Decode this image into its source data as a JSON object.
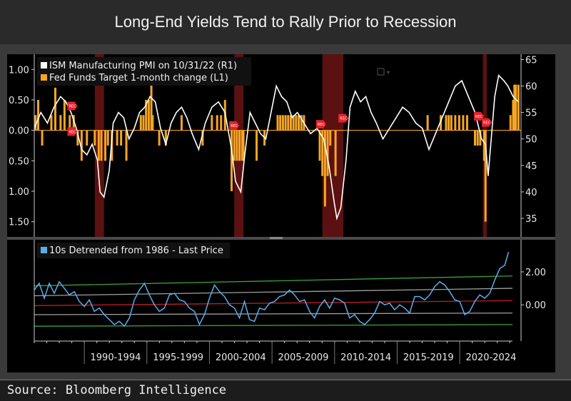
{
  "title": "Long-End Yields Tend to Rally Prior to Recession",
  "source": "Source: Bloomberg Intelligence",
  "colors": {
    "pmi": "#ffffff",
    "fed": "#f5a623",
    "tens": "#5aaeea",
    "recession": "#6b1414",
    "rec_marker": "#e8202a",
    "green_band": "#3ca03c",
    "grey_band": "#a0a0a0",
    "mean": "#c02020"
  },
  "chart_data": [
    {
      "type": "line",
      "title": "",
      "legend": [
        "ISM Manufacturing PMI on 10/31/22 (R1)",
        "Fed Funds Target 1-month change (L1)"
      ],
      "legend_position": "top-left",
      "left_axis": {
        "ticks": [
          "1.00",
          "0.50",
          "0.00",
          "0.50",
          "1.00",
          "1.50"
        ],
        "values": [
          1.0,
          0.5,
          0,
          -0.5,
          -1.0,
          -1.5
        ],
        "ylim": [
          -1.75,
          1.25
        ]
      },
      "right_axis": {
        "ticks": [
          "65",
          "60",
          "55",
          "50",
          "45",
          "40",
          "35"
        ],
        "values": [
          65,
          60,
          55,
          50,
          45,
          40,
          35
        ],
        "ylim": [
          31.5,
          66
        ]
      },
      "xlim": [
        1986.0,
        2023.0
      ],
      "recessions": [
        [
          1990.6,
          1991.3
        ],
        [
          2001.2,
          2001.9
        ],
        [
          2007.9,
          2009.5
        ],
        [
          2020.1,
          2020.4
        ]
      ],
      "rec_markers": [
        [
          1988.9,
          0.4,
          "REC"
        ],
        [
          1988.9,
          -0.02,
          "REC"
        ],
        [
          2001.2,
          0.08,
          "REC"
        ],
        [
          2007.8,
          0.1,
          "REC"
        ],
        [
          2009.5,
          0.2,
          "REC"
        ],
        [
          2019.8,
          0.23,
          "REC"
        ],
        [
          2020.4,
          0.13,
          "REC"
        ],
        [
          2008.3,
          -0.31,
          ""
        ],
        [
          2008.7,
          0.33,
          ""
        ]
      ],
      "series": [
        {
          "name": "ISM Manufacturing PMI",
          "axis": "right",
          "x": [
            1986.0,
            1986.5,
            1987.0,
            1987.5,
            1988.0,
            1988.4,
            1988.8,
            1989.2,
            1989.6,
            1990.0,
            1990.4,
            1990.8,
            1991.0,
            1991.3,
            1991.7,
            1992.0,
            1992.4,
            1992.8,
            1993.2,
            1993.6,
            1994.0,
            1994.4,
            1994.8,
            1995.2,
            1995.6,
            1996.0,
            1996.4,
            1996.8,
            1997.2,
            1997.6,
            1998.0,
            1998.5,
            1999.0,
            1999.5,
            2000.0,
            2000.5,
            2001.0,
            2001.3,
            2001.7,
            2002.0,
            2002.4,
            2002.8,
            2003.2,
            2003.6,
            2004.0,
            2004.4,
            2004.8,
            2005.2,
            2005.6,
            2006.0,
            2006.5,
            2007.0,
            2007.5,
            2008.0,
            2008.4,
            2008.8,
            2009.0,
            2009.3,
            2009.7,
            2010.0,
            2010.4,
            2010.8,
            2011.2,
            2011.6,
            2012.0,
            2012.5,
            2013.0,
            2013.5,
            2014.0,
            2014.5,
            2015.0,
            2015.5,
            2016.0,
            2016.5,
            2017.0,
            2017.5,
            2018.0,
            2018.5,
            2019.0,
            2019.5,
            2020.0,
            2020.3,
            2020.5,
            2020.8,
            2021.0,
            2021.3,
            2021.7,
            2022.0,
            2022.4,
            2022.8
          ],
          "y": [
            52,
            55,
            53,
            56,
            58,
            57,
            55,
            52,
            48,
            47,
            49,
            46,
            40,
            39,
            44,
            53,
            55,
            54,
            50,
            52,
            55,
            56,
            58,
            57,
            52,
            49,
            53,
            55,
            56,
            54,
            51,
            48,
            53,
            56,
            57,
            55,
            48,
            42,
            40,
            47,
            55,
            53,
            51,
            50,
            55,
            60,
            58,
            57,
            54,
            55,
            53,
            51,
            52,
            50,
            45,
            38,
            35,
            37,
            46,
            56,
            59,
            57,
            58,
            55,
            53,
            50,
            52,
            54,
            56,
            55,
            53,
            52,
            48,
            51,
            54,
            57,
            60,
            61,
            58,
            55,
            50,
            49,
            43,
            52,
            58,
            62,
            61,
            60,
            58,
            57
          ],
          "color": "#ffffff"
        },
        {
          "name": "Fed Funds Target 1-month change",
          "axis": "left",
          "type": "bar",
          "x": [
            1986.1,
            1986.3,
            1986.6,
            1987.3,
            1987.6,
            1988.0,
            1988.3,
            1988.7,
            1989.0,
            1989.3,
            1989.6,
            1990.0,
            1990.6,
            1990.9,
            1991.1,
            1991.4,
            1991.6,
            1991.9,
            1992.3,
            1992.6,
            1993.0,
            1994.1,
            1994.3,
            1994.5,
            1994.7,
            1994.9,
            1995.0,
            1995.5,
            1996.0,
            1997.2,
            1998.8,
            1999.5,
            1999.9,
            2000.2,
            2000.5,
            2001.0,
            2001.2,
            2001.4,
            2001.6,
            2001.8,
            2001.9,
            2002.9,
            2003.5,
            2004.5,
            2004.7,
            2004.9,
            2005.1,
            2005.3,
            2005.5,
            2005.7,
            2005.9,
            2006.1,
            2006.3,
            2006.5,
            2007.7,
            2007.9,
            2008.1,
            2008.3,
            2008.5,
            2008.9,
            2015.9,
            2016.9,
            2017.3,
            2017.5,
            2017.7,
            2018.0,
            2018.3,
            2018.6,
            2018.9,
            2019.5,
            2019.7,
            2019.9,
            2020.2,
            2020.3,
            2022.2,
            2022.4,
            2022.5,
            2022.6,
            2022.8
          ],
          "y": [
            0.25,
            0.5,
            -0.25,
            0.25,
            0.7,
            0.25,
            0.5,
            0.25,
            0.25,
            -0.25,
            -0.5,
            -0.25,
            -0.25,
            -0.5,
            -0.5,
            -0.5,
            -0.25,
            -0.5,
            -0.25,
            -0.25,
            -0.5,
            0.25,
            0.25,
            0.5,
            0.5,
            0.75,
            0.25,
            -0.25,
            -0.25,
            0.25,
            -0.25,
            0.25,
            0.25,
            0.25,
            0.5,
            -1.0,
            -0.5,
            -0.5,
            -0.5,
            -0.5,
            -0.5,
            -0.5,
            -0.25,
            0.25,
            0.25,
            0.25,
            0.25,
            0.25,
            0.25,
            0.25,
            0.25,
            0.25,
            0.25,
            0.25,
            -0.5,
            -0.75,
            -1.25,
            -0.75,
            -0.25,
            -0.75,
            0.25,
            0.25,
            0.25,
            0.25,
            0.25,
            0.25,
            0.25,
            0.25,
            0.25,
            -0.25,
            -0.25,
            -0.25,
            -0.5,
            -1.5,
            0.25,
            0.5,
            0.75,
            0.75,
            0.75
          ],
          "color": "#f5a623"
        }
      ]
    },
    {
      "type": "line",
      "title": "",
      "legend": [
        "10s Detrended from 1986 - Last Price"
      ],
      "legend_position": "top-left",
      "right_axis": {
        "ticks": [
          "2.00",
          "0.00"
        ],
        "values": [
          2.0,
          0.0
        ],
        "ylim": [
          -2.2,
          3.6
        ]
      },
      "xlim": [
        1986.0,
        2024.9
      ],
      "x_tick_labels": [
        "1990-1994",
        "1995-1999",
        "2000-2004",
        "2005-2009",
        "2010-2014",
        "2015-2019",
        "2020-2024"
      ],
      "bands": {
        "upper_green": [
          1.15,
          1.75
        ],
        "upper_grey": [
          0.55,
          1.0
        ],
        "mean": [
          -0.05,
          0.25
        ],
        "lower_grey": [
          -0.6,
          -0.5
        ],
        "lower_green": [
          -1.3,
          -1.2
        ]
      },
      "series": [
        {
          "name": "10s Detrended from 1986",
          "x": [
            1986.0,
            1986.4,
            1986.8,
            1987.2,
            1987.6,
            1988.0,
            1988.4,
            1988.8,
            1989.2,
            1989.6,
            1990.0,
            1990.4,
            1990.8,
            1991.2,
            1991.6,
            1992.0,
            1992.4,
            1992.8,
            1993.2,
            1993.6,
            1994.0,
            1994.4,
            1994.8,
            1995.2,
            1995.6,
            1996.0,
            1996.4,
            1996.8,
            1997.2,
            1997.6,
            1998.0,
            1998.4,
            1998.8,
            1999.2,
            1999.6,
            2000.0,
            2000.4,
            2000.8,
            2001.2,
            2001.6,
            2002.0,
            2002.4,
            2002.8,
            2003.2,
            2003.6,
            2004.0,
            2004.4,
            2004.8,
            2005.2,
            2005.6,
            2006.0,
            2006.4,
            2006.8,
            2007.2,
            2007.6,
            2008.0,
            2008.4,
            2008.8,
            2009.2,
            2009.6,
            2010.0,
            2010.4,
            2010.8,
            2011.2,
            2011.6,
            2012.0,
            2012.4,
            2012.8,
            2013.2,
            2013.6,
            2014.0,
            2014.4,
            2014.8,
            2015.2,
            2015.6,
            2016.0,
            2016.4,
            2016.8,
            2017.2,
            2017.6,
            2018.0,
            2018.4,
            2018.8,
            2019.2,
            2019.6,
            2020.0,
            2020.4,
            2020.8,
            2021.2,
            2021.6,
            2022.0,
            2022.4,
            2022.8,
            2023.2,
            2023.6,
            2023.9
          ],
          "y": [
            0.9,
            1.3,
            0.4,
            1.3,
            0.7,
            1.4,
            1.0,
            0.6,
            0.8,
            0.2,
            -0.1,
            0.3,
            -0.4,
            -0.2,
            -0.6,
            -0.9,
            -1.2,
            -1.0,
            -1.3,
            -0.8,
            0.3,
            0.9,
            1.3,
            0.6,
            0.0,
            -0.4,
            -0.2,
            0.6,
            0.7,
            0.3,
            0.2,
            -0.2,
            -0.4,
            -1.2,
            -0.6,
            0.4,
            1.2,
            0.8,
            0.5,
            0.0,
            -0.2,
            -0.8,
            0.2,
            -0.9,
            -1.0,
            -0.2,
            -0.3,
            0.1,
            0.2,
            0.5,
            0.6,
            0.9,
            0.6,
            0.2,
            0.3,
            -0.4,
            -0.8,
            -0.1,
            0.3,
            -0.2,
            0.4,
            0.3,
            0.1,
            -0.8,
            -0.6,
            -1.0,
            -1.2,
            -0.9,
            -0.5,
            0.2,
            0.0,
            0.1,
            -0.3,
            0.0,
            -0.2,
            -0.5,
            0.5,
            0.5,
            0.3,
            0.6,
            1.1,
            1.4,
            1.2,
            0.8,
            0.3,
            0.2,
            -0.6,
            -0.4,
            0.2,
            0.6,
            0.4,
            0.7,
            1.5,
            2.2,
            2.4,
            3.2
          ],
          "color": "#5aaeea"
        }
      ]
    }
  ]
}
